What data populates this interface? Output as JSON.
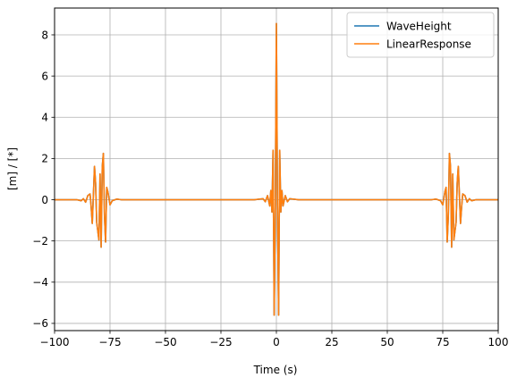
{
  "chart_data": {
    "type": "line",
    "title": "",
    "xlabel": "Time (s)",
    "ylabel": "[m] / [*]",
    "xlim": [
      -100,
      100
    ],
    "ylim": [
      -6.35,
      9.3
    ],
    "grid": true,
    "legend_position": "top-right",
    "x_ticks": [
      "−100",
      "−75",
      "−50",
      "−25",
      "0",
      "25",
      "50",
      "75",
      "100"
    ],
    "x_tick_values": [
      -100,
      -75,
      -50,
      -25,
      0,
      25,
      50,
      75,
      100
    ],
    "y_ticks": [
      "−6",
      "−4",
      "−2",
      "0",
      "2",
      "4",
      "6",
      "8"
    ],
    "y_tick_values": [
      -6,
      -4,
      -2,
      0,
      2,
      4,
      6,
      8
    ],
    "series": [
      {
        "name": "WaveHeight",
        "color": "#1f77b4",
        "x": [
          -100,
          -90,
          -88,
          -87,
          -86,
          -85,
          -84,
          -83.5,
          -83,
          -82,
          -81.5,
          -81,
          -80,
          -79.5,
          -79,
          -78.5,
          -78,
          -77.5,
          -77,
          -76.5,
          -76,
          -75,
          -74,
          -72,
          -70,
          -60,
          -30,
          -10,
          -6,
          -5,
          -4,
          -3,
          -2.5,
          -2,
          -1.5,
          -1,
          -0.5,
          0,
          0.5,
          1,
          1.5,
          2,
          2.5,
          3,
          4,
          5,
          6,
          10,
          30,
          60,
          70,
          72,
          74,
          75,
          76,
          76.5,
          77,
          77.5,
          78,
          78.5,
          79,
          79.5,
          80,
          81,
          81.5,
          82,
          83,
          83.5,
          84,
          85,
          86,
          87,
          88,
          90,
          100
        ],
        "y": [
          0,
          0,
          -0.05,
          0.05,
          -0.12,
          0.2,
          0.28,
          -0.35,
          -1.15,
          1.62,
          0.8,
          -1.1,
          -1.95,
          1.25,
          -2.3,
          1.6,
          2.25,
          -0.8,
          -2.05,
          0.6,
          0.4,
          -0.25,
          -0.05,
          0.03,
          0,
          0,
          0,
          0,
          0.05,
          -0.1,
          0.2,
          -0.3,
          0.45,
          -0.6,
          2.4,
          -5.6,
          -0.3,
          8.55,
          -0.3,
          -5.6,
          2.4,
          -0.6,
          0.45,
          -0.3,
          0.2,
          -0.1,
          0.05,
          0,
          0,
          0,
          0,
          0.03,
          -0.05,
          -0.25,
          0.4,
          0.6,
          -2.05,
          -0.8,
          2.25,
          1.6,
          -2.3,
          1.25,
          -1.95,
          -1.1,
          0.8,
          1.62,
          -1.15,
          -0.35,
          0.28,
          0.2,
          -0.12,
          0.05,
          -0.05,
          0,
          0
        ]
      },
      {
        "name": "LinearResponse",
        "color": "#ff7f0e",
        "x": [
          -100,
          -90,
          -88,
          -87,
          -86,
          -85,
          -84,
          -83.5,
          -83,
          -82,
          -81.5,
          -81,
          -80,
          -79.5,
          -79,
          -78.5,
          -78,
          -77.5,
          -77,
          -76.5,
          -76,
          -75,
          -74,
          -72,
          -70,
          -60,
          -30,
          -10,
          -6,
          -5,
          -4,
          -3,
          -2.5,
          -2,
          -1.5,
          -1,
          -0.5,
          0,
          0.5,
          1,
          1.5,
          2,
          2.5,
          3,
          4,
          5,
          6,
          10,
          30,
          60,
          70,
          72,
          74,
          75,
          76,
          76.5,
          77,
          77.5,
          78,
          78.5,
          79,
          79.5,
          80,
          81,
          81.5,
          82,
          83,
          83.5,
          84,
          85,
          86,
          87,
          88,
          90,
          100
        ],
        "y": [
          0,
          0,
          -0.05,
          0.05,
          -0.12,
          0.2,
          0.28,
          -0.35,
          -1.15,
          1.62,
          0.8,
          -1.1,
          -1.95,
          1.25,
          -2.3,
          1.6,
          2.25,
          -0.8,
          -2.05,
          0.6,
          0.4,
          -0.25,
          -0.05,
          0.03,
          0,
          0,
          0,
          0,
          0.05,
          -0.1,
          0.2,
          -0.3,
          0.45,
          -0.6,
          2.4,
          -5.6,
          -0.3,
          8.55,
          -0.3,
          -5.6,
          2.4,
          -0.6,
          0.45,
          -0.3,
          0.2,
          -0.1,
          0.05,
          0,
          0,
          0,
          0,
          0.03,
          -0.05,
          -0.25,
          0.4,
          0.6,
          -2.05,
          -0.8,
          2.25,
          1.6,
          -2.3,
          1.25,
          -1.95,
          -1.1,
          0.8,
          1.62,
          -1.15,
          -0.35,
          0.28,
          0.2,
          -0.12,
          0.05,
          -0.05,
          0,
          0
        ]
      }
    ]
  }
}
